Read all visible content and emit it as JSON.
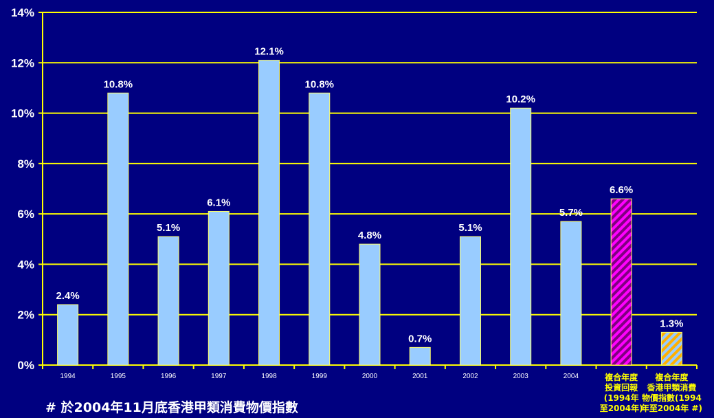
{
  "chart_data": {
    "type": "bar",
    "categories": [
      "1994",
      "1995",
      "1996",
      "1997",
      "1998",
      "1999",
      "2000",
      "2001",
      "2002",
      "2003",
      "2004"
    ],
    "values": [
      2.4,
      10.8,
      5.1,
      6.1,
      12.1,
      10.8,
      4.8,
      0.7,
      5.1,
      10.2,
      5.7
    ],
    "value_labels": [
      "2.4%",
      "10.8%",
      "5.1%",
      "6.1%",
      "12.1%",
      "10.8%",
      "4.8%",
      "0.7%",
      "5.1%",
      "10.2%",
      "5.7%"
    ],
    "special_bars": [
      {
        "label_lines": [
          "複合年度",
          "投資回報",
          "(1994年",
          "至2004年)"
        ],
        "value": 6.6,
        "value_label": "6.6%",
        "pattern": "hatched",
        "colors": [
          "#ff00ff",
          "#800080"
        ]
      },
      {
        "label_lines": [
          "複合年度",
          "香港甲類消費",
          "物價指數(1994",
          "年至2004年 #)"
        ],
        "value": 1.3,
        "value_label": "1.3%",
        "pattern": "hatched",
        "colors": [
          "#ffb000",
          "#99ccff"
        ]
      }
    ],
    "yticks": [
      "0%",
      "2%",
      "4%",
      "6%",
      "8%",
      "10%",
      "12%",
      "14%"
    ],
    "ylim": [
      0,
      14
    ],
    "grid": true,
    "title": "",
    "xlabel": "",
    "ylabel": "",
    "bar_color": "#99ccff",
    "gridline_color": "#ffff00",
    "background_color": "#000080"
  },
  "footnote": "# 於2004年11月底香港甲類消費物價指數"
}
